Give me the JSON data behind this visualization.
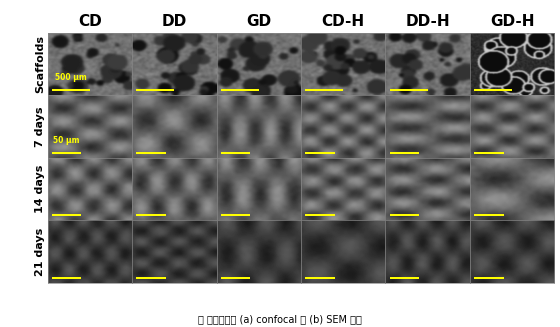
{
  "col_headers": [
    "CD",
    "DD",
    "GD",
    "CD-H",
    "DD-H",
    "GD-H"
  ],
  "row_labels": [
    "Scaffolds",
    "7 days",
    "14 days",
    "21 days"
  ],
  "scale_bar_row0": "500 μm",
  "scale_bar_other": "50 μm",
  "caption": "각 스펀지에서 (a) confocal 및 (b) SEM 결과",
  "n_cols": 6,
  "n_rows": 4,
  "bg_color": "#000000",
  "header_fontsize": 11,
  "row_label_fontsize": 8,
  "scale_bar_color": "#ffff00",
  "border_color": "#ffffff",
  "fig_bg": "#ffffff",
  "caption_fontsize": 7
}
